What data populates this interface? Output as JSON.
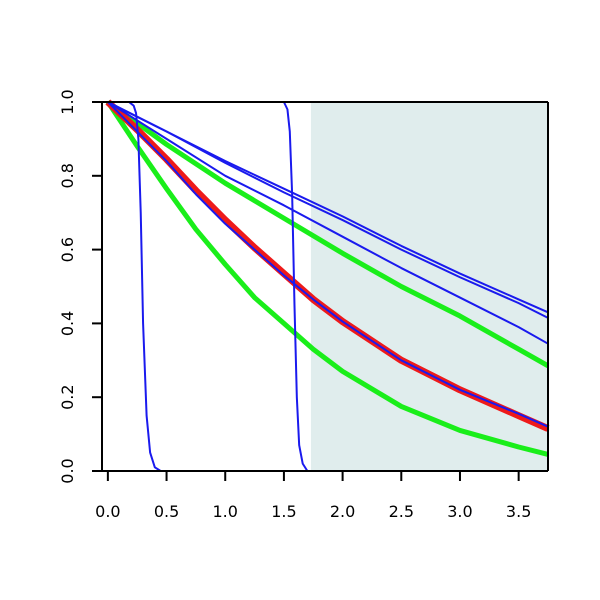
{
  "chart_data": {
    "type": "line",
    "title": "",
    "xlabel": "",
    "ylabel": "",
    "xlim": [
      -0.05,
      3.75
    ],
    "ylim": [
      0.0,
      1.0
    ],
    "x_ticks": [
      0.0,
      0.5,
      1.0,
      1.5,
      2.0,
      2.5,
      3.0,
      3.5
    ],
    "x_tick_labels": [
      "0.0",
      "0.5",
      "1.0",
      "1.5",
      "2.0",
      "2.5",
      "3.0",
      "3.5"
    ],
    "y_ticks": [
      0.0,
      0.2,
      0.4,
      0.6,
      0.8,
      1.0
    ],
    "y_tick_labels": [
      "0.0",
      "0.2",
      "0.4",
      "0.6",
      "0.8",
      "1.0"
    ],
    "grid": false,
    "legend": "none",
    "shaded_region": {
      "x_from": 1.73,
      "x_to": 3.75,
      "color": "#e0eded"
    },
    "colors": {
      "blue": "#1a1aee",
      "green": "#1aee1a",
      "red": "#ee1a1a"
    },
    "series": [
      {
        "color": "blue",
        "x": [
          0.0,
          0.5,
          1.0,
          1.5,
          2.0,
          2.5,
          3.0,
          3.5,
          3.75
        ],
        "y": [
          1.0,
          0.92,
          0.84,
          0.765,
          0.69,
          0.61,
          0.535,
          0.465,
          0.43
        ]
      },
      {
        "color": "blue",
        "x": [
          0.0,
          0.5,
          1.0,
          1.5,
          2.0,
          2.5,
          3.0,
          3.5,
          3.75
        ],
        "y": [
          1.0,
          0.92,
          0.835,
          0.755,
          0.68,
          0.6,
          0.525,
          0.455,
          0.415
        ]
      },
      {
        "color": "blue",
        "x": [
          0.0,
          0.5,
          1.0,
          1.5,
          2.0,
          2.5,
          3.0,
          3.5,
          3.75
        ],
        "y": [
          1.0,
          0.9,
          0.8,
          0.72,
          0.635,
          0.55,
          0.47,
          0.39,
          0.345
        ]
      },
      {
        "color": "green",
        "x": [
          0.0,
          0.5,
          1.0,
          1.5,
          2.0,
          2.5,
          3.0,
          3.5,
          3.75
        ],
        "y": [
          1.0,
          0.885,
          0.78,
          0.685,
          0.59,
          0.5,
          0.42,
          0.33,
          0.285
        ]
      },
      {
        "color": "blue",
        "x": [
          0.0,
          0.25,
          0.5,
          0.75,
          1.0,
          1.25,
          1.5,
          1.75,
          2.0,
          2.5,
          3.0,
          3.5,
          3.75
        ],
        "y": [
          1.0,
          0.92,
          0.84,
          0.75,
          0.67,
          0.6,
          0.53,
          0.465,
          0.405,
          0.3,
          0.22,
          0.155,
          0.12
        ]
      },
      {
        "color": "red",
        "x": [
          0.0,
          0.25,
          0.5,
          0.75,
          1.0,
          1.25,
          1.5,
          1.75,
          2.0,
          2.5,
          3.0,
          3.5,
          3.75
        ],
        "y": [
          1.0,
          0.925,
          0.845,
          0.76,
          0.68,
          0.605,
          0.535,
          0.465,
          0.405,
          0.3,
          0.22,
          0.15,
          0.115
        ]
      },
      {
        "color": "green",
        "x": [
          0.0,
          0.25,
          0.5,
          0.75,
          1.0,
          1.25,
          1.5,
          1.75,
          2.0,
          2.5,
          3.0,
          3.5,
          3.75
        ],
        "y": [
          1.0,
          0.88,
          0.765,
          0.655,
          0.56,
          0.47,
          0.4,
          0.33,
          0.27,
          0.175,
          0.11,
          0.065,
          0.045
        ]
      },
      {
        "color": "blue",
        "x": [
          0.0,
          0.18,
          0.22,
          0.24,
          0.26,
          0.28,
          0.3,
          0.33,
          0.36,
          0.4,
          0.45,
          3.75
        ],
        "y": [
          1.0,
          1.0,
          0.99,
          0.97,
          0.9,
          0.7,
          0.4,
          0.15,
          0.05,
          0.01,
          0.0,
          0.0
        ]
      },
      {
        "color": "blue",
        "x": [
          0.0,
          1.5,
          1.53,
          1.55,
          1.57,
          1.59,
          1.61,
          1.63,
          1.66,
          1.7,
          3.75
        ],
        "y": [
          1.0,
          1.0,
          0.98,
          0.92,
          0.75,
          0.45,
          0.2,
          0.07,
          0.02,
          0.0,
          0.0
        ]
      }
    ]
  }
}
